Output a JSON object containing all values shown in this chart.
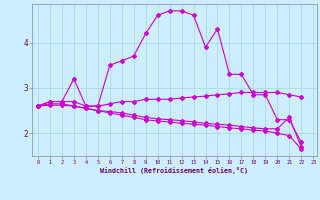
{
  "x_range": [
    -0.5,
    23.3
  ],
  "y_range": [
    1.5,
    4.85
  ],
  "background_color": "#cceeff",
  "grid_color": "#aadddd",
  "line_color": "#cc00cc",
  "marker": "D",
  "marker_size": 2.0,
  "linewidth": 0.8,
  "xlabel": "Windchill (Refroidissement éolien,°C)",
  "x_ticks": [
    0,
    1,
    2,
    3,
    4,
    5,
    6,
    7,
    8,
    9,
    10,
    11,
    12,
    13,
    14,
    15,
    16,
    17,
    18,
    19,
    20,
    21,
    22,
    23
  ],
  "y_ticks": [
    2,
    3,
    4
  ],
  "lines": [
    [
      2.6,
      2.7,
      2.7,
      3.2,
      2.6,
      2.6,
      3.5,
      3.6,
      3.7,
      4.2,
      4.6,
      4.7,
      4.7,
      4.6,
      3.9,
      4.3,
      3.3,
      3.3,
      2.85,
      2.85,
      2.3,
      2.3,
      1.8
    ],
    [
      2.6,
      2.7,
      2.7,
      2.7,
      2.6,
      2.6,
      2.65,
      2.7,
      2.7,
      2.75,
      2.75,
      2.75,
      2.78,
      2.8,
      2.82,
      2.85,
      2.87,
      2.9,
      2.9,
      2.9,
      2.9,
      2.85,
      2.8
    ],
    [
      2.6,
      2.65,
      2.65,
      2.6,
      2.55,
      2.5,
      2.48,
      2.45,
      2.4,
      2.35,
      2.32,
      2.3,
      2.28,
      2.25,
      2.22,
      2.2,
      2.18,
      2.15,
      2.12,
      2.1,
      2.1,
      2.35,
      1.7
    ],
    [
      2.6,
      2.62,
      2.62,
      2.6,
      2.55,
      2.5,
      2.45,
      2.4,
      2.35,
      2.3,
      2.27,
      2.25,
      2.22,
      2.2,
      2.18,
      2.15,
      2.12,
      2.1,
      2.07,
      2.05,
      2.0,
      1.95,
      1.65
    ]
  ]
}
